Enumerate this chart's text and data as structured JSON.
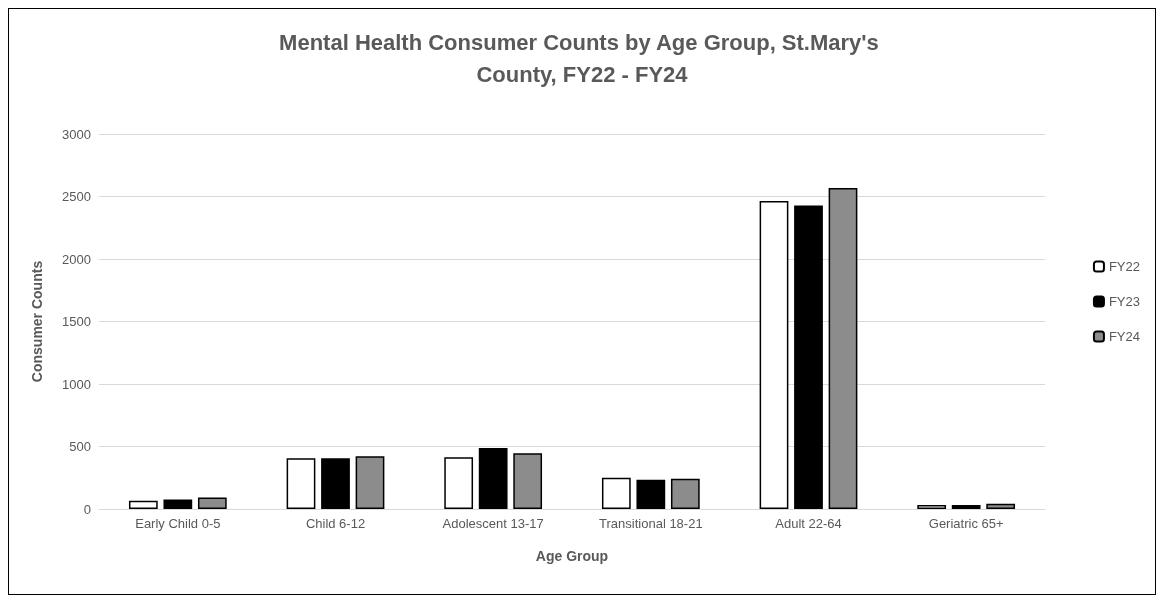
{
  "chart_data": {
    "type": "bar",
    "title": "Mental Health Consumer Counts by Age Group, St.Mary's County, FY22 - FY24",
    "xlabel": "Age Group",
    "ylabel": "Consumer Counts",
    "categories": [
      "Early Child 0-5",
      "Child 6-12",
      "Adolescent 13-17",
      "Transitional 18-21",
      "Adult 22-64",
      "Geriatric 65+"
    ],
    "series": [
      {
        "name": "FY22",
        "color": "#ffffff",
        "values": [
          66,
          407,
          415,
          250,
          2465,
          32
        ]
      },
      {
        "name": "FY23",
        "color": "#000000",
        "values": [
          77,
          407,
          489,
          234,
          2428,
          32
        ]
      },
      {
        "name": "FY24",
        "color": "#8c8c8c",
        "values": [
          93,
          423,
          447,
          242,
          2569,
          43
        ]
      }
    ],
    "ylim": [
      0,
      3000
    ],
    "yticks": [
      0,
      500,
      1000,
      1500,
      2000,
      2500,
      3000
    ],
    "grid": "y",
    "legend": "right"
  }
}
